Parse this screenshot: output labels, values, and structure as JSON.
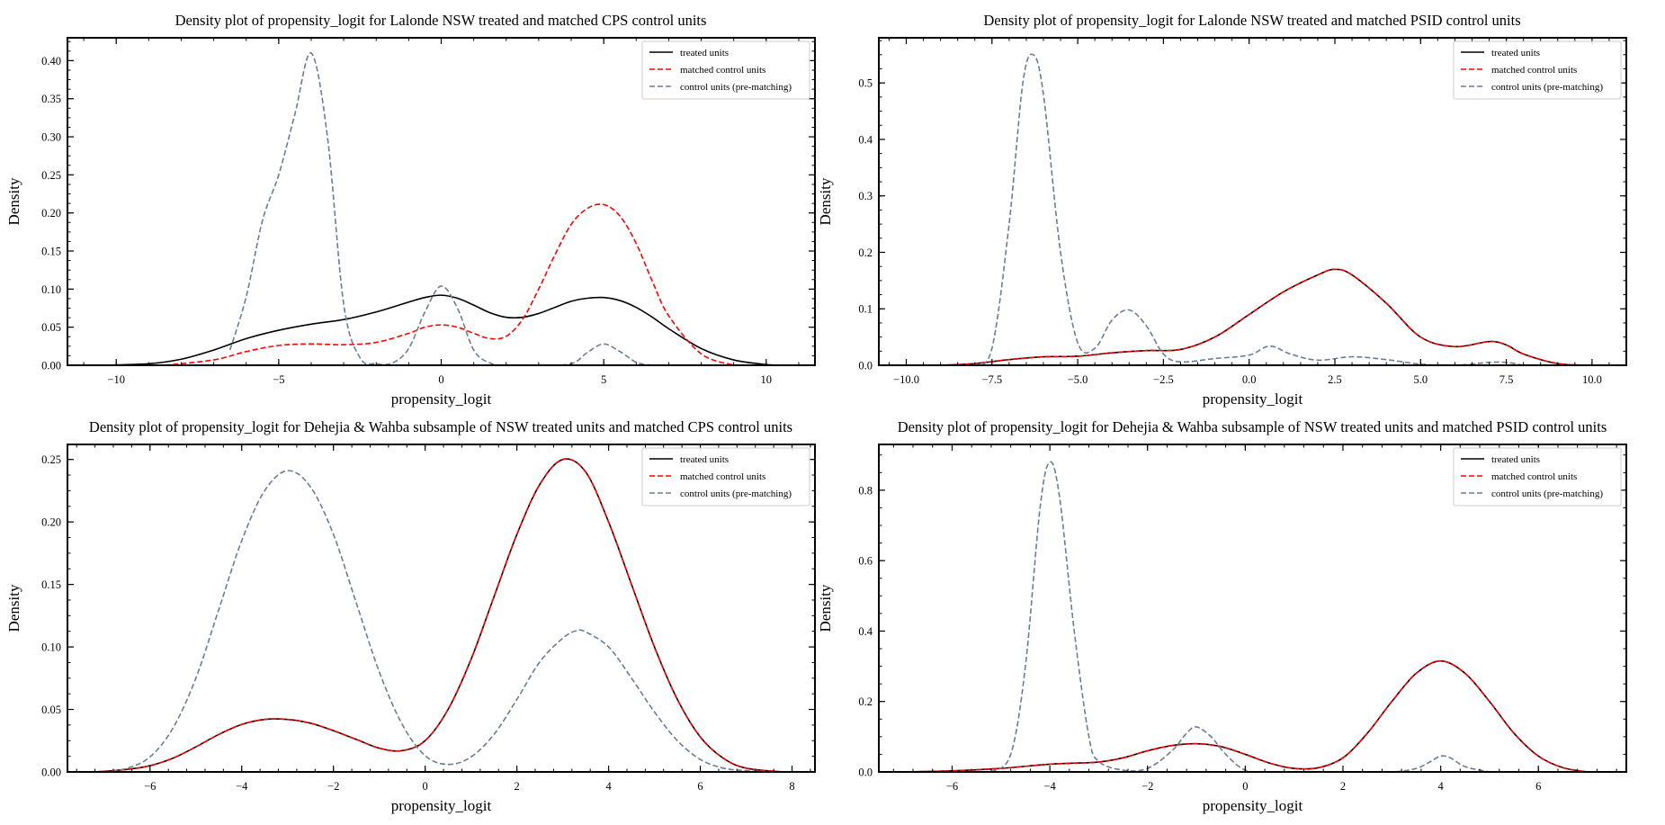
{
  "chart_data": [
    {
      "type": "line",
      "title": "Density plot of  propensity_logit for Lalonde NSW treated and matched CPS control units",
      "xlabel": "propensity_logit",
      "ylabel": "Density",
      "xlim": [
        -11.5,
        11.5
      ],
      "ylim": [
        0,
        0.43
      ],
      "xticks": [
        -10,
        -5,
        0,
        5,
        10
      ],
      "xtick_labels": [
        "−10",
        "−5",
        "0",
        "5",
        "10"
      ],
      "yticks": [
        0,
        0.05,
        0.1,
        0.15,
        0.2,
        0.25,
        0.3,
        0.35,
        0.4
      ],
      "ytick_labels": [
        "0.00",
        "0.05",
        "0.10",
        "0.15",
        "0.20",
        "0.25",
        "0.30",
        "0.35",
        "0.40"
      ],
      "legend_position": "top-right",
      "series": [
        {
          "name": "treated units",
          "color": "#000000",
          "style": "solid",
          "x": [
            -10.5,
            -9,
            -8,
            -7,
            -6,
            -5,
            -4,
            -3,
            -2,
            -1,
            -0.5,
            0,
            0.5,
            1,
            1.5,
            2,
            2.5,
            3,
            3.5,
            4,
            4.5,
            5,
            5.5,
            6,
            6.5,
            7,
            8,
            9,
            10,
            10.5
          ],
          "y": [
            0.0,
            0.002,
            0.008,
            0.02,
            0.035,
            0.046,
            0.054,
            0.06,
            0.07,
            0.083,
            0.089,
            0.092,
            0.088,
            0.079,
            0.069,
            0.063,
            0.063,
            0.068,
            0.076,
            0.084,
            0.088,
            0.089,
            0.085,
            0.076,
            0.063,
            0.048,
            0.022,
            0.007,
            0.001,
            0.0
          ]
        },
        {
          "name": "matched control units",
          "color": "#ff0000",
          "style": "dashed",
          "x": [
            -8.5,
            -7,
            -6,
            -5,
            -4,
            -3,
            -2,
            -1,
            -0.5,
            0,
            0.5,
            1,
            1.5,
            2,
            2.5,
            3,
            3.5,
            4,
            4.5,
            5,
            5.5,
            6,
            6.5,
            7,
            8,
            9
          ],
          "y": [
            0.0,
            0.007,
            0.018,
            0.026,
            0.028,
            0.027,
            0.03,
            0.042,
            0.05,
            0.053,
            0.05,
            0.042,
            0.035,
            0.038,
            0.06,
            0.1,
            0.145,
            0.185,
            0.206,
            0.211,
            0.196,
            0.16,
            0.11,
            0.065,
            0.015,
            0.0
          ]
        },
        {
          "name": "control units (pre-matching)",
          "color": "#6b7d96",
          "style": "dashed",
          "x": [
            -6.5,
            -6,
            -5.5,
            -5,
            -4.5,
            -4,
            -3.5,
            -3,
            -2.5,
            -2,
            -1.5,
            -1,
            -0.5,
            0,
            0.5,
            1,
            1.5,
            2,
            3,
            4,
            4.5,
            5,
            5.5,
            6,
            6.5
          ],
          "y": [
            0.02,
            0.09,
            0.19,
            0.25,
            0.33,
            0.41,
            0.3,
            0.08,
            0.01,
            0.002,
            0.003,
            0.022,
            0.07,
            0.104,
            0.075,
            0.02,
            0.003,
            0.0,
            0.0,
            0.002,
            0.017,
            0.028,
            0.018,
            0.004,
            0.0
          ]
        }
      ]
    },
    {
      "type": "line",
      "title": "Density plot of  propensity_logit for Lalonde NSW treated and matched PSID control units",
      "xlabel": "propensity_logit",
      "ylabel": "Density",
      "xlim": [
        -10.8,
        11.0
      ],
      "ylim": [
        0,
        0.58
      ],
      "xticks": [
        -10,
        -7.5,
        -5,
        -2.5,
        0,
        2.5,
        5,
        7.5,
        10
      ],
      "xtick_labels": [
        "−10.0",
        "−7.5",
        "−5.0",
        "−2.5",
        "0.0",
        "2.5",
        "5.0",
        "7.5",
        "10.0"
      ],
      "yticks": [
        0,
        0.1,
        0.2,
        0.3,
        0.4,
        0.5
      ],
      "ytick_labels": [
        "0.0",
        "0.1",
        "0.2",
        "0.3",
        "0.4",
        "0.5"
      ],
      "legend_position": "top-right",
      "series": [
        {
          "name": "treated units",
          "color": "#000000",
          "style": "solid",
          "x": [
            -9,
            -8,
            -7,
            -6,
            -5,
            -4,
            -3,
            -2,
            -1,
            0,
            1,
            2,
            2.5,
            3,
            4,
            5,
            6,
            7,
            7.5,
            8,
            9,
            10
          ],
          "y": [
            0.0,
            0.003,
            0.01,
            0.015,
            0.016,
            0.022,
            0.026,
            0.028,
            0.05,
            0.09,
            0.13,
            0.16,
            0.17,
            0.16,
            0.11,
            0.05,
            0.033,
            0.042,
            0.036,
            0.02,
            0.003,
            0.0
          ]
        },
        {
          "name": "matched control units",
          "color": "#ff0000",
          "style": "dashed",
          "x": [
            -9,
            -8,
            -7,
            -6,
            -5,
            -4,
            -3,
            -2,
            -1,
            0,
            1,
            2,
            2.5,
            3,
            4,
            5,
            6,
            7,
            7.5,
            8,
            9,
            10
          ],
          "y": [
            0.0,
            0.003,
            0.01,
            0.015,
            0.016,
            0.022,
            0.026,
            0.028,
            0.05,
            0.09,
            0.13,
            0.16,
            0.17,
            0.16,
            0.11,
            0.05,
            0.033,
            0.042,
            0.036,
            0.02,
            0.003,
            0.0
          ]
        },
        {
          "name": "control units (pre-matching)",
          "color": "#6b7d96",
          "style": "dashed",
          "x": [
            -8,
            -7.5,
            -7,
            -6.6,
            -6.3,
            -6,
            -5.5,
            -5,
            -4.5,
            -4,
            -3.5,
            -3,
            -2.5,
            -2,
            -1,
            0,
            0.6,
            1.2,
            2,
            3,
            4,
            5,
            6,
            7,
            7.5,
            8
          ],
          "y": [
            0.0,
            0.03,
            0.25,
            0.5,
            0.55,
            0.48,
            0.2,
            0.04,
            0.03,
            0.08,
            0.098,
            0.07,
            0.02,
            0.006,
            0.012,
            0.018,
            0.034,
            0.02,
            0.009,
            0.015,
            0.01,
            0.002,
            0.0,
            0.005,
            0.005,
            0.0
          ]
        }
      ]
    },
    {
      "type": "line",
      "title": "Density plot of propensity_logit for Dehejia & Wahba subsample of NSW treated units and matched CPS control units",
      "xlabel": "propensity_logit",
      "ylabel": "Density",
      "xlim": [
        -7.8,
        8.5
      ],
      "ylim": [
        0,
        0.262
      ],
      "xticks": [
        -6,
        -4,
        -2,
        0,
        2,
        4,
        6,
        8
      ],
      "xtick_labels": [
        "−6",
        "−4",
        "−2",
        "0",
        "2",
        "4",
        "6",
        "8"
      ],
      "yticks": [
        0,
        0.05,
        0.1,
        0.15,
        0.2,
        0.25
      ],
      "ytick_labels": [
        "0.00",
        "0.05",
        "0.10",
        "0.15",
        "0.20",
        "0.25"
      ],
      "legend_position": "top-right",
      "series": [
        {
          "name": "treated units",
          "color": "#000000",
          "style": "solid",
          "x": [
            -7.2,
            -6.5,
            -6,
            -5.5,
            -5,
            -4.5,
            -4,
            -3.5,
            -3,
            -2.5,
            -2,
            -1.5,
            -1,
            -0.5,
            0,
            0.5,
            1,
            1.5,
            2,
            2.5,
            3,
            3.5,
            4,
            4.5,
            5,
            5.5,
            6,
            6.5,
            7,
            7.8
          ],
          "y": [
            0.0,
            0.002,
            0.005,
            0.011,
            0.02,
            0.03,
            0.038,
            0.042,
            0.042,
            0.039,
            0.033,
            0.026,
            0.019,
            0.017,
            0.025,
            0.05,
            0.09,
            0.14,
            0.19,
            0.23,
            0.25,
            0.24,
            0.2,
            0.15,
            0.1,
            0.058,
            0.028,
            0.011,
            0.003,
            0.0
          ]
        },
        {
          "name": "matched control units",
          "color": "#ff0000",
          "style": "dashed",
          "x": [
            -7.2,
            -6.5,
            -6,
            -5.5,
            -5,
            -4.5,
            -4,
            -3.5,
            -3,
            -2.5,
            -2,
            -1.5,
            -1,
            -0.5,
            0,
            0.5,
            1,
            1.5,
            2,
            2.5,
            3,
            3.5,
            4,
            4.5,
            5,
            5.5,
            6,
            6.5,
            7,
            7.8
          ],
          "y": [
            0.0,
            0.002,
            0.005,
            0.011,
            0.02,
            0.03,
            0.038,
            0.042,
            0.042,
            0.039,
            0.033,
            0.026,
            0.019,
            0.017,
            0.025,
            0.05,
            0.09,
            0.14,
            0.19,
            0.23,
            0.25,
            0.24,
            0.2,
            0.15,
            0.1,
            0.058,
            0.028,
            0.011,
            0.003,
            0.0
          ]
        },
        {
          "name": "control units (pre-matching)",
          "color": "#6b7d96",
          "style": "dashed",
          "x": [
            -7,
            -6.5,
            -6,
            -5.5,
            -5,
            -4.5,
            -4,
            -3.5,
            -3,
            -2.5,
            -2,
            -1.5,
            -1,
            -0.5,
            0,
            0.5,
            1,
            1.5,
            2,
            2.5,
            3,
            3.3,
            3.5,
            4,
            4.5,
            5,
            5.5,
            6,
            6.5,
            7,
            7.5
          ],
          "y": [
            0.0,
            0.003,
            0.012,
            0.035,
            0.075,
            0.13,
            0.185,
            0.225,
            0.241,
            0.228,
            0.19,
            0.135,
            0.08,
            0.038,
            0.013,
            0.006,
            0.012,
            0.03,
            0.058,
            0.088,
            0.107,
            0.113,
            0.112,
            0.1,
            0.075,
            0.048,
            0.025,
            0.01,
            0.003,
            0.001,
            0.0
          ]
        }
      ]
    },
    {
      "type": "line",
      "title": "Density plot of propensity_logit for Dehejia & Wahba subsample of NSW treated units and matched PSID control units",
      "xlabel": "propensity_logit",
      "ylabel": "Density",
      "xlim": [
        -7.5,
        7.8
      ],
      "ylim": [
        0,
        0.93
      ],
      "xticks": [
        -6,
        -4,
        -2,
        0,
        2,
        4,
        6
      ],
      "xtick_labels": [
        "−6",
        "−4",
        "−2",
        "0",
        "2",
        "4",
        "6"
      ],
      "yticks": [
        0,
        0.2,
        0.4,
        0.6,
        0.8
      ],
      "ytick_labels": [
        "0.0",
        "0.2",
        "0.4",
        "0.6",
        "0.8"
      ],
      "legend_position": "top-right",
      "series": [
        {
          "name": "treated units",
          "color": "#000000",
          "style": "solid",
          "x": [
            -7,
            -6,
            -5,
            -4.5,
            -4,
            -3.5,
            -3,
            -2.5,
            -2,
            -1.5,
            -1,
            -0.5,
            0,
            0.5,
            1,
            1.5,
            2,
            2.5,
            3,
            3.5,
            4,
            4.5,
            5,
            5.5,
            6,
            6.5,
            7
          ],
          "y": [
            0.0,
            0.003,
            0.01,
            0.016,
            0.022,
            0.025,
            0.028,
            0.04,
            0.06,
            0.075,
            0.08,
            0.072,
            0.05,
            0.025,
            0.01,
            0.012,
            0.04,
            0.11,
            0.2,
            0.28,
            0.315,
            0.28,
            0.2,
            0.11,
            0.045,
            0.012,
            0.0
          ]
        },
        {
          "name": "matched control units",
          "color": "#ff0000",
          "style": "dashed",
          "x": [
            -7,
            -6,
            -5,
            -4.5,
            -4,
            -3.5,
            -3,
            -2.5,
            -2,
            -1.5,
            -1,
            -0.5,
            0,
            0.5,
            1,
            1.5,
            2,
            2.5,
            3,
            3.5,
            4,
            4.5,
            5,
            5.5,
            6,
            6.5,
            7
          ],
          "y": [
            0.0,
            0.003,
            0.01,
            0.016,
            0.022,
            0.025,
            0.028,
            0.04,
            0.06,
            0.075,
            0.08,
            0.072,
            0.05,
            0.025,
            0.01,
            0.012,
            0.04,
            0.11,
            0.2,
            0.28,
            0.315,
            0.28,
            0.2,
            0.11,
            0.045,
            0.012,
            0.0
          ]
        },
        {
          "name": "control units (pre-matching)",
          "color": "#6b7d96",
          "style": "dashed",
          "x": [
            -5.2,
            -4.8,
            -4.5,
            -4.2,
            -4,
            -3.8,
            -3.5,
            -3.2,
            -3,
            -2.5,
            -2,
            -1.5,
            -1.2,
            -1,
            -0.7,
            -0.4,
            0,
            0.5,
            1,
            2,
            3,
            3.5,
            3.8,
            4,
            4.2,
            4.5,
            5
          ],
          "y": [
            0.0,
            0.05,
            0.3,
            0.75,
            0.88,
            0.78,
            0.4,
            0.1,
            0.03,
            0.005,
            0.01,
            0.06,
            0.11,
            0.128,
            0.1,
            0.05,
            0.005,
            0.0,
            0.0,
            0.0,
            0.0,
            0.01,
            0.03,
            0.045,
            0.04,
            0.015,
            0.0
          ]
        }
      ]
    }
  ]
}
